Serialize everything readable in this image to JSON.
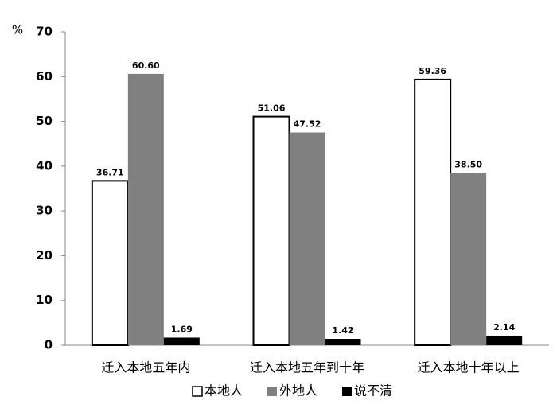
{
  "chart_data": {
    "type": "bar",
    "y_unit": "%",
    "categories": [
      "迁入本地五年内",
      "迁入本地五年到十年",
      "迁入本地十年以上"
    ],
    "series": [
      {
        "name": "本地人",
        "color": "#ffffff",
        "edgecolor": "#000000",
        "values": [
          36.71,
          51.06,
          59.36
        ],
        "value_labels": [
          "36.71",
          "51.06",
          "59.36"
        ]
      },
      {
        "name": "外地人",
        "color": "#808080",
        "values": [
          60.6,
          47.52,
          38.5
        ],
        "value_labels": [
          "60.60",
          "47.52",
          "38.50"
        ]
      },
      {
        "name": "说不清",
        "color": "#000000",
        "values": [
          1.69,
          1.42,
          2.14
        ],
        "value_labels": [
          "1.69",
          "1.42",
          "2.14"
        ]
      }
    ],
    "ylim": [
      0,
      70
    ],
    "yticks": [
      0,
      10,
      20,
      30,
      40,
      50,
      60,
      70
    ],
    "grid": false,
    "legend": "bottom"
  }
}
